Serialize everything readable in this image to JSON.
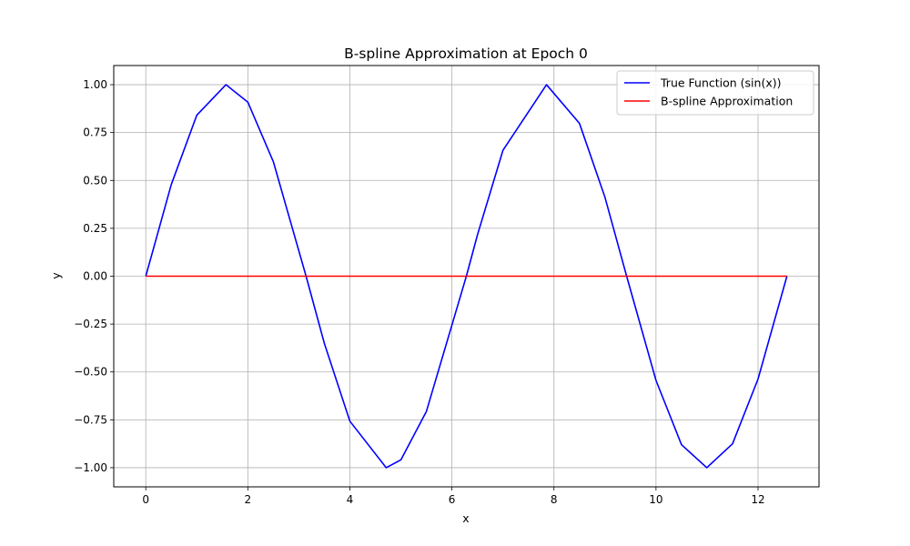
{
  "chart_data": {
    "type": "line",
    "title": "B-spline Approximation at Epoch 0",
    "xlabel": "x",
    "ylabel": "y",
    "xlim": [
      -0.628,
      13.195
    ],
    "ylim": [
      -1.1,
      1.1
    ],
    "x_ticks": [
      0,
      2,
      4,
      6,
      8,
      10,
      12
    ],
    "x_tick_labels": [
      "0",
      "2",
      "4",
      "6",
      "8",
      "10",
      "12"
    ],
    "y_ticks": [
      1.0,
      0.75,
      0.5,
      0.25,
      0.0,
      -0.25,
      -0.5,
      -0.75,
      -1.0
    ],
    "y_tick_labels": [
      "1.00",
      "0.75",
      "0.50",
      "0.25",
      "0.00",
      "−0.25",
      "−0.50",
      "−0.75",
      "−1.00"
    ],
    "grid": true,
    "legend_position": "top-right",
    "series": [
      {
        "name": "True Function (sin(x))",
        "color": "#0000ff",
        "x": [
          0,
          0.5,
          1.0,
          1.5708,
          2.0,
          2.5,
          3.1416,
          3.5,
          4.0,
          4.7124,
          5.0,
          5.5,
          6.2832,
          6.5,
          7.0,
          7.854,
          8.5,
          9.0,
          9.4248,
          10.0,
          10.5,
          10.9956,
          11.5,
          12.0,
          12.5664
        ],
        "y": [
          0,
          0.479,
          0.841,
          1.0,
          0.909,
          0.598,
          0.0,
          -0.351,
          -0.757,
          -1.0,
          -0.959,
          -0.706,
          0.0,
          0.215,
          0.657,
          1.0,
          0.798,
          0.412,
          0.0,
          -0.544,
          -0.88,
          -1.0,
          -0.875,
          -0.537,
          0.0
        ]
      },
      {
        "name": "B-spline Approximation",
        "color": "#ff0000",
        "x": [
          0,
          12.5664
        ],
        "y": [
          0,
          0
        ]
      }
    ]
  }
}
